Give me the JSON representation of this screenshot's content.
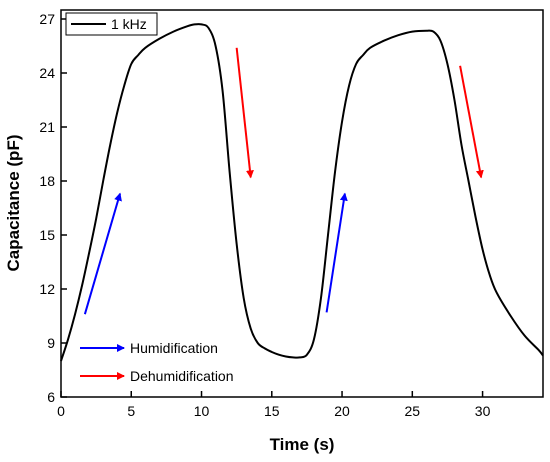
{
  "chart_data": {
    "type": "line",
    "xlabel": "Time (s)",
    "ylabel": "Capacitance (pF)",
    "xlim": [
      0,
      34.3
    ],
    "ylim": [
      6,
      27.5
    ],
    "xticks": [
      0,
      5,
      10,
      15,
      20,
      25,
      30
    ],
    "yticks": [
      6,
      9,
      12,
      15,
      18,
      21,
      24,
      27
    ],
    "grid": false,
    "legend_position": "top-left",
    "series": [
      {
        "name": "1 kHz",
        "color": "#000000",
        "x": [
          0,
          0.5,
          1,
          1.5,
          2,
          2.5,
          3,
          3.5,
          4,
          4.5,
          5,
          5.5,
          6,
          7,
          8,
          9,
          9.5,
          10,
          10.5,
          11,
          11.5,
          12,
          12.5,
          13,
          13.5,
          14,
          14.5,
          15,
          15.5,
          16,
          16.5,
          17,
          17.5,
          18,
          18.5,
          19,
          19.5,
          20,
          20.5,
          21,
          21.5,
          22,
          23,
          24,
          25,
          26,
          26.5,
          27,
          27.5,
          28,
          28.5,
          29,
          29.5,
          30,
          30.5,
          31,
          32,
          33,
          34,
          34.3
        ],
        "y": [
          8.0,
          9.2,
          10.6,
          12.2,
          14.0,
          15.9,
          18.0,
          20.0,
          21.8,
          23.3,
          24.5,
          25.0,
          25.4,
          25.9,
          26.3,
          26.6,
          26.7,
          26.7,
          26.5,
          25.5,
          23.0,
          18.5,
          14.5,
          11.5,
          9.8,
          9.0,
          8.7,
          8.5,
          8.35,
          8.25,
          8.2,
          8.2,
          8.35,
          9.2,
          11.5,
          15.0,
          18.5,
          21.3,
          23.3,
          24.5,
          25.0,
          25.4,
          25.8,
          26.1,
          26.3,
          26.35,
          26.3,
          25.8,
          24.5,
          22.5,
          20.0,
          18.0,
          16.0,
          14.2,
          12.8,
          11.8,
          10.5,
          9.4,
          8.6,
          8.3
        ]
      }
    ],
    "annotations": [
      {
        "label": "Humidification",
        "color": "#0000ff"
      },
      {
        "label": "Dehumidification",
        "color": "#ff0000"
      }
    ],
    "arrow_marks": [
      {
        "x1": 1.7,
        "y1": 10.6,
        "x2": 4.2,
        "y2": 17.3,
        "color": "#0000ff"
      },
      {
        "x1": 18.9,
        "y1": 10.7,
        "x2": 20.2,
        "y2": 17.3,
        "color": "#0000ff"
      },
      {
        "x1": 12.5,
        "y1": 25.4,
        "x2": 13.5,
        "y2": 18.2,
        "color": "#ff0000"
      },
      {
        "x1": 28.4,
        "y1": 24.4,
        "x2": 29.9,
        "y2": 18.2,
        "color": "#ff0000"
      }
    ]
  }
}
